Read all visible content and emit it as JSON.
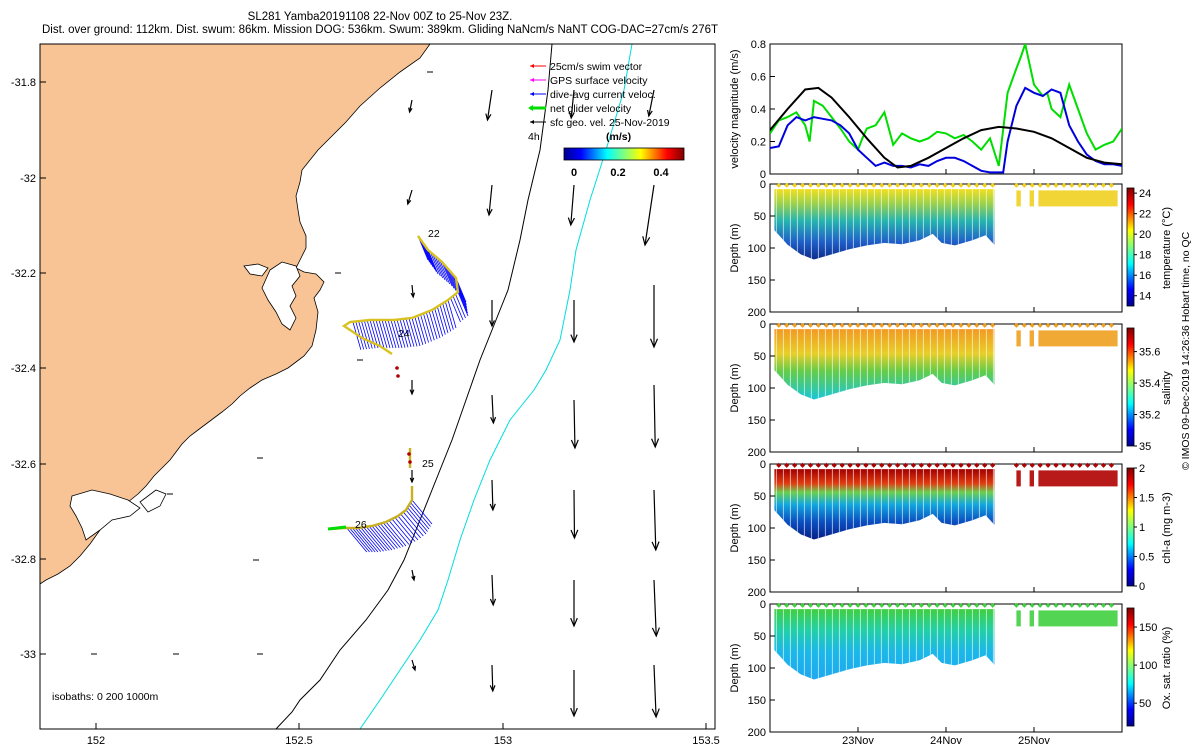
{
  "header": {
    "line1": "SL281 Yamba20191108 22-Nov 00Z to 25-Nov 23Z.",
    "line2": "Dist. over ground: 112km. Dist. swum: 86km. Mission DOG: 536km. Swum: 389km. Gliding NaNcm/s NaNT COG-DAC=27cm/s 276T"
  },
  "map": {
    "xticks": [
      "152",
      "152.5",
      "153",
      "153.5"
    ],
    "yticks": [
      "-31.8",
      "-32",
      "-32.2",
      "-32.4",
      "-32.6",
      "-32.8",
      "-33"
    ],
    "legend": [
      "25cm/s swim vector",
      "GPS surface velocity",
      "dive-avg current veloc.",
      "net glider velocity",
      "sfc geo. vel. 25-Nov-2019"
    ],
    "legend_colors": [
      "#ff0000",
      "#ff00ff",
      "#0000ff",
      "#00e000",
      "#000000"
    ],
    "scale_label": "4h",
    "colorbar_title": "(m/s)",
    "colorbar_ticks": [
      "0",
      "0.2",
      "0.4"
    ],
    "isobaths": "isobaths: 0   200  1000m",
    "day_labels": [
      "22",
      "24",
      "25",
      "26"
    ],
    "land_color": "#f8c495"
  },
  "chart_data": [
    {
      "type": "line",
      "ylabel": "velocity magnitude (m/s)",
      "ylim": [
        0,
        0.8
      ],
      "yticks": [
        "0",
        "0.2",
        "0.4",
        "0.6",
        "0.8"
      ],
      "x_range": [
        "22-Nov",
        "26-Nov"
      ],
      "series": [
        {
          "color": "#00dd00",
          "x": [
            22.0,
            22.1,
            22.2,
            22.3,
            22.4,
            22.45,
            22.5,
            22.6,
            22.7,
            22.8,
            22.9,
            23.0,
            23.05,
            23.1,
            23.2,
            23.3,
            23.4,
            23.5,
            23.6,
            23.7,
            23.8,
            23.9,
            24.0,
            24.1,
            24.2,
            24.3,
            24.4,
            24.5,
            24.6,
            24.7,
            24.8,
            24.85,
            24.9,
            25.0,
            25.1,
            25.15,
            25.2,
            25.3,
            25.4,
            25.5,
            25.6,
            25.7,
            25.8,
            25.9,
            26.0
          ],
          "y": [
            0.25,
            0.33,
            0.35,
            0.38,
            0.3,
            0.2,
            0.45,
            0.42,
            0.35,
            0.28,
            0.2,
            0.15,
            0.22,
            0.28,
            0.3,
            0.38,
            0.18,
            0.25,
            0.22,
            0.2,
            0.22,
            0.26,
            0.25,
            0.22,
            0.24,
            0.2,
            0.15,
            0.22,
            0.05,
            0.5,
            0.65,
            0.72,
            0.8,
            0.55,
            0.48,
            0.5,
            0.4,
            0.35,
            0.55,
            0.4,
            0.25,
            0.15,
            0.18,
            0.2,
            0.28
          ]
        },
        {
          "color": "#0000dd",
          "x": [
            22.0,
            22.1,
            22.2,
            22.3,
            22.4,
            22.5,
            22.6,
            22.7,
            22.8,
            22.9,
            23.0,
            23.1,
            23.2,
            23.3,
            23.4,
            23.5,
            23.6,
            23.7,
            23.8,
            23.9,
            24.0,
            24.1,
            24.2,
            24.3,
            24.4,
            24.5,
            24.6,
            24.65,
            24.7,
            24.8,
            24.9,
            25.0,
            25.1,
            25.2,
            25.3,
            25.4,
            25.5,
            25.6,
            25.7,
            25.8,
            25.9,
            26.0
          ],
          "y": [
            0.16,
            0.17,
            0.3,
            0.35,
            0.33,
            0.35,
            0.34,
            0.33,
            0.3,
            0.25,
            0.15,
            0.1,
            0.05,
            0.07,
            0.05,
            0.05,
            0.04,
            0.06,
            0.05,
            0.08,
            0.1,
            0.1,
            0.08,
            0.05,
            0.02,
            0.01,
            0.01,
            0.01,
            0.2,
            0.42,
            0.53,
            0.5,
            0.48,
            0.52,
            0.5,
            0.3,
            0.2,
            0.12,
            0.08,
            0.06,
            0.06,
            0.05
          ]
        },
        {
          "color": "#000000",
          "x": [
            22.0,
            22.2,
            22.4,
            22.55,
            22.7,
            22.9,
            23.1,
            23.3,
            23.45,
            23.6,
            23.8,
            24.0,
            24.2,
            24.4,
            24.6,
            24.8,
            25.0,
            25.2,
            25.4,
            25.6,
            25.8,
            26.0
          ],
          "y": [
            0.27,
            0.4,
            0.52,
            0.53,
            0.47,
            0.35,
            0.22,
            0.1,
            0.04,
            0.05,
            0.1,
            0.16,
            0.22,
            0.27,
            0.29,
            0.28,
            0.26,
            0.22,
            0.16,
            0.1,
            0.07,
            0.06
          ]
        }
      ]
    },
    {
      "type": "heatmap",
      "ylabel": "Depth (m)",
      "colorbar_label": "temperature (°C)",
      "yticks": [
        "0",
        "50",
        "100",
        "150",
        "200"
      ],
      "ylim": [
        0,
        200
      ],
      "cticks": [
        "14",
        "16",
        "18",
        "20",
        "22",
        "24"
      ],
      "crange": [
        13,
        24.5
      ]
    },
    {
      "type": "heatmap",
      "ylabel": "Depth (m)",
      "colorbar_label": "salinity",
      "yticks": [
        "0",
        "50",
        "100",
        "150",
        "200"
      ],
      "ylim": [
        0,
        200
      ],
      "cticks": [
        "35",
        "35.2",
        "35.4",
        "35.6"
      ],
      "crange": [
        35,
        35.75
      ]
    },
    {
      "type": "heatmap",
      "ylabel": "Depth (m)",
      "colorbar_label": "chl-a (mg m-3)",
      "yticks": [
        "0",
        "50",
        "100",
        "150",
        "200"
      ],
      "ylim": [
        0,
        200
      ],
      "cticks": [
        "0",
        "0.5",
        "1",
        "1.5",
        "2"
      ],
      "crange": [
        0,
        2
      ]
    },
    {
      "type": "heatmap",
      "ylabel": "Depth (m)",
      "colorbar_label": "Ox. sat. ratio (%)",
      "yticks": [
        "0",
        "50",
        "100",
        "150",
        "200"
      ],
      "ylim": [
        0,
        200
      ],
      "cticks": [
        "50",
        "100",
        "150"
      ],
      "crange": [
        20,
        175
      ]
    }
  ],
  "xaxis": {
    "labels": [
      "23Nov",
      "24Nov",
      "25Nov"
    ]
  },
  "credit": "© IMOS 09-Dec-2019 14:26:36 Hobart time, no QC"
}
